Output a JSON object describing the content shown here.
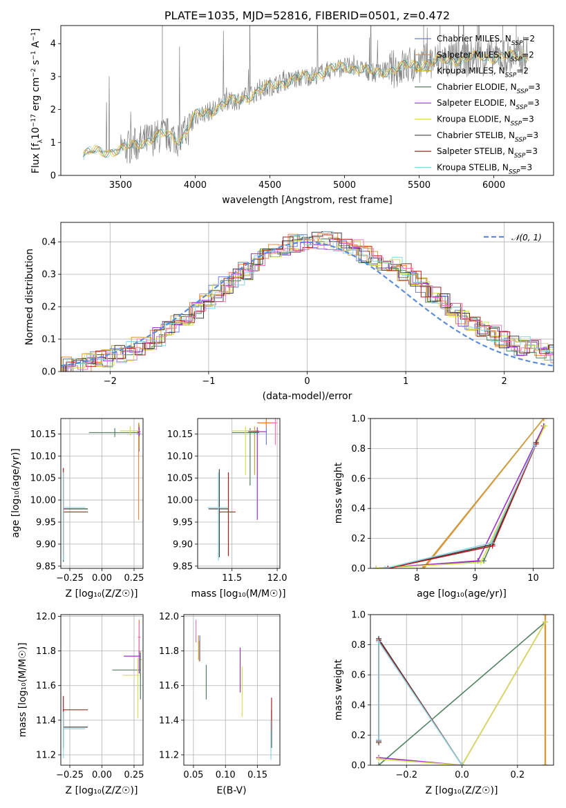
{
  "colors": {
    "Chabrier MILES": "#6a7fd6",
    "Salpeter MILES": "#f0853c",
    "Kroupa MILES": "#c8a33a",
    "Chabrier ELODIE": "#4f7f5f",
    "Salpeter ELODIE": "#9b30c8",
    "Kroupa ELODIE": "#d6df50",
    "Chabrier STELIB": "#404040",
    "Salpeter STELIB": "#b01c1c",
    "Kroupa STELIB": "#8fd3e0",
    "pink": "#ee77b4",
    "data": "#808080",
    "gauss": "#5b8bd9"
  },
  "chart_data": [
    {
      "id": "spectrum",
      "type": "line",
      "title": "PLATE=1035, MJD=52816, FIBERID=0501, z=0.472",
      "xlabel": "wavelength [Angstrom, rest frame]",
      "ylabel": "Flux [f_λ10^-17 erg cm^-2 s^-1 A^-1]",
      "xlim": [
        3100,
        6400
      ],
      "ylim": [
        0,
        4.55
      ],
      "xticks": [
        3500,
        4000,
        4500,
        5000,
        5500,
        6000
      ],
      "yticks": [
        0,
        1,
        2,
        3,
        4
      ],
      "legend_position": "top-right",
      "legend": [
        {
          "name": "Chabrier MILES",
          "sub": "SSP",
          "n": "2"
        },
        {
          "name": "Salpeter MILES",
          "sub": "SSP",
          "n": "2"
        },
        {
          "name": "Kroupa MILES",
          "sub": "SSP",
          "n": "2"
        },
        {
          "name": "Chabrier ELODIE",
          "sub": "SSP",
          "n": "3"
        },
        {
          "name": "Salpeter ELODIE",
          "sub": "SSP",
          "n": "3"
        },
        {
          "name": "Kroupa ELODIE",
          "sub": "SSP",
          "n": "3"
        },
        {
          "name": "Chabrier STELIB",
          "sub": "SSP",
          "n": "3"
        },
        {
          "name": "Salpeter STELIB",
          "sub": "SSP",
          "n": "3"
        },
        {
          "name": "Kroupa STELIB",
          "sub": "SSP",
          "n": "3"
        }
      ],
      "model_trend": [
        [
          3250,
          0.6
        ],
        [
          3300,
          0.72
        ],
        [
          3400,
          0.72
        ],
        [
          3500,
          0.78
        ],
        [
          3550,
          0.85
        ],
        [
          3700,
          1.1
        ],
        [
          3800,
          1.25
        ],
        [
          3900,
          1.1
        ],
        [
          3950,
          1.4
        ],
        [
          4000,
          1.8
        ],
        [
          4100,
          1.95
        ],
        [
          4200,
          2.2
        ],
        [
          4300,
          2.3
        ],
        [
          4400,
          2.5
        ],
        [
          4500,
          2.7
        ],
        [
          4600,
          2.85
        ],
        [
          4700,
          2.95
        ],
        [
          4800,
          3.05
        ],
        [
          4900,
          3.2
        ],
        [
          5000,
          3.3
        ],
        [
          5100,
          3.25
        ],
        [
          5200,
          3.1
        ],
        [
          5300,
          3.2
        ],
        [
          5400,
          3.3
        ],
        [
          5500,
          3.4
        ],
        [
          5600,
          3.45
        ],
        [
          5700,
          3.5
        ],
        [
          5800,
          3.55
        ],
        [
          5900,
          3.6
        ],
        [
          6000,
          3.6
        ],
        [
          6100,
          3.6
        ],
        [
          6200,
          3.65
        ]
      ]
    },
    {
      "id": "residuals",
      "type": "line",
      "xlabel": "(data-model)/error",
      "ylabel": "Normed distribution",
      "xlim": [
        -2.5,
        2.5
      ],
      "ylim": [
        0,
        0.46
      ],
      "xticks": [
        -2,
        -1,
        0,
        1,
        2
      ],
      "yticks": [
        0.0,
        0.1,
        0.2,
        0.3,
        0.4
      ],
      "legend_position": "top-right",
      "legend": [
        "𝒩(0, 1)"
      ],
      "bin_width": 0.1
    },
    {
      "id": "age-vs-Z",
      "type": "scatter",
      "xlabel": "Z [log₁₀(Z/Z☉)]",
      "ylabel": "age  [log₁₀(age/yr)]",
      "xlim": [
        -0.32,
        0.32
      ],
      "ylim": [
        9.845,
        10.185
      ],
      "xticks": [
        -0.25,
        0.0,
        0.25
      ],
      "yticks": [
        9.85,
        9.9,
        9.95,
        10.0,
        10.05,
        10.1,
        10.15
      ],
      "points": [
        {
          "model": "Chabrier MILES",
          "x": 0.29,
          "y": 10.15,
          "xerr": [
            0.02,
            0.01
          ],
          "yerr": [
            0.04,
            0.02
          ]
        },
        {
          "model": "Salpeter MILES",
          "x": 0.285,
          "y": 10.155,
          "xerr": [
            0.01,
            0.01
          ],
          "yerr": [
            0.2,
            0.02
          ]
        },
        {
          "model": "Kroupa MILES",
          "x": 0.288,
          "y": 10.155,
          "xerr": [
            0.01,
            0.01
          ],
          "yerr": [
            0.04,
            0.02
          ]
        },
        {
          "model": "Chabrier ELODIE",
          "x": 0.1,
          "y": 10.153,
          "xerr": [
            0.2,
            0.19
          ],
          "yerr": [
            0.01,
            0.01
          ]
        },
        {
          "model": "Salpeter ELODIE",
          "x": 0.29,
          "y": 10.155,
          "xerr": [
            0.01,
            0.01
          ],
          "yerr": [
            0.01,
            0.01
          ]
        },
        {
          "model": "Kroupa ELODIE",
          "x": 0.22,
          "y": 10.157,
          "xerr": [
            0.08,
            0.07
          ],
          "yerr": [
            0.01,
            0.01
          ]
        },
        {
          "model": "Chabrier STELIB",
          "x": -0.3,
          "y": 9.98,
          "xerr": [
            0.0,
            0.19
          ],
          "yerr": [
            0.12,
            0.07
          ]
        },
        {
          "model": "Salpeter STELIB",
          "x": -0.3,
          "y": 9.973,
          "xerr": [
            0.0,
            0.19
          ],
          "yerr": [
            0.1,
            0.1
          ]
        },
        {
          "model": "Kroupa STELIB",
          "x": -0.3,
          "y": 9.983,
          "xerr": [
            0.0,
            0.17
          ],
          "yerr": [
            0.12,
            0.08
          ]
        }
      ]
    },
    {
      "id": "age-vs-mass",
      "type": "scatter",
      "xlabel": "mass [log₁₀(M/M☉)]",
      "xlim": [
        11.12,
        12.03
      ],
      "ylim": [
        9.845,
        10.185
      ],
      "xticks": [
        11.5,
        12.0
      ],
      "yticks": [
        9.85,
        9.9,
        9.95,
        10.0,
        10.05,
        10.1,
        10.15
      ],
      "points": [
        {
          "model": "Chabrier MILES",
          "x": 11.88,
          "y": 10.175,
          "xerr": [
            0.1,
            0.1
          ],
          "yerr": [
            0.05,
            0.01
          ]
        },
        {
          "model": "Salpeter MILES",
          "x": 11.88,
          "y": 10.175,
          "xerr": [
            0.1,
            0.1
          ],
          "yerr": [
            0.01,
            0.01
          ]
        },
        {
          "model": "Kroupa MILES",
          "x": 11.75,
          "y": 10.157,
          "xerr": [
            0.1,
            0.05
          ],
          "yerr": [
            0.1,
            0.01
          ]
        },
        {
          "model": "Chabrier ELODIE",
          "x": 11.7,
          "y": 10.153,
          "xerr": [
            0.2,
            0.1
          ],
          "yerr": [
            0.12,
            0.01
          ]
        },
        {
          "model": "Salpeter ELODIE",
          "x": 11.78,
          "y": 10.155,
          "xerr": [
            0.1,
            0.1
          ],
          "yerr": [
            0.2,
            0.01
          ]
        },
        {
          "model": "Kroupa ELODIE",
          "x": 11.65,
          "y": 10.157,
          "xerr": [
            0.15,
            0.1
          ],
          "yerr": [
            0.1,
            0.01
          ]
        },
        {
          "model": "Chabrier STELIB",
          "x": 11.36,
          "y": 9.98,
          "xerr": [
            0.12,
            0.1
          ],
          "yerr": [
            0.11,
            0.09
          ]
        },
        {
          "model": "Salpeter STELIB",
          "x": 11.46,
          "y": 9.973,
          "xerr": [
            0.1,
            0.08
          ],
          "yerr": [
            0.1,
            0.09
          ]
        },
        {
          "model": "Kroupa STELIB",
          "x": 11.35,
          "y": 9.983,
          "xerr": [
            0.12,
            0.1
          ],
          "yerr": [
            0.12,
            0.08
          ]
        },
        {
          "model": "pink",
          "x": 11.98,
          "y": 10.175,
          "xerr": [
            0.05,
            0.02
          ],
          "yerr": [
            0.05,
            0.01
          ]
        }
      ]
    },
    {
      "id": "mass-weight-vs-age",
      "type": "line",
      "xlabel": "age  [log₁₀(age/yr)]",
      "ylabel": "mass weight",
      "xlim": [
        7.2,
        10.35
      ],
      "ylim": [
        0,
        1.0
      ],
      "xticks": [
        8,
        9,
        10
      ],
      "yticks": [
        0.0,
        0.2,
        0.4,
        0.6,
        0.8,
        1.0
      ],
      "series": [
        {
          "model": "Chabrier MILES",
          "x": [
            8.1,
            10.18
          ],
          "y": [
            0.0,
            1.0
          ]
        },
        {
          "model": "Salpeter MILES",
          "x": [
            8.12,
            10.18
          ],
          "y": [
            0.0,
            1.0
          ]
        },
        {
          "model": "Kroupa MILES",
          "x": [
            8.1,
            10.18
          ],
          "y": [
            0.0,
            1.0
          ]
        },
        {
          "model": "Chabrier ELODIE",
          "x": [
            7.3,
            9.15,
            10.18
          ],
          "y": [
            0.0,
            0.05,
            0.95
          ]
        },
        {
          "model": "Salpeter ELODIE",
          "x": [
            7.3,
            9.05,
            10.18
          ],
          "y": [
            0.0,
            0.05,
            0.95
          ]
        },
        {
          "model": "Kroupa ELODIE",
          "x": [
            7.3,
            9.1,
            10.2
          ],
          "y": [
            0.0,
            0.04,
            0.95
          ]
        },
        {
          "model": "Chabrier STELIB",
          "x": [
            7.5,
            9.3,
            10.05
          ],
          "y": [
            0.0,
            0.16,
            0.84
          ]
        },
        {
          "model": "Salpeter STELIB",
          "x": [
            7.5,
            9.3,
            10.05
          ],
          "y": [
            0.0,
            0.15,
            0.83
          ]
        },
        {
          "model": "Kroupa STELIB",
          "x": [
            7.45,
            9.28,
            10.03
          ],
          "y": [
            0.0,
            0.17,
            0.82
          ]
        }
      ]
    },
    {
      "id": "mass-vs-Z",
      "type": "scatter",
      "xlabel": "Z [log₁₀(Z/Z☉)]",
      "ylabel": "mass [log₁₀(M/M☉)]",
      "xlim": [
        -0.32,
        0.32
      ],
      "ylim": [
        11.14,
        12.01
      ],
      "xticks": [
        -0.25,
        0.0,
        0.25
      ],
      "yticks": [
        11.2,
        11.4,
        11.6,
        11.8,
        12.0
      ],
      "points": [
        {
          "model": "Chabrier MILES",
          "x": 0.29,
          "y": 11.88,
          "xerr": [
            0.01,
            0.01
          ],
          "yerr": [
            0.1,
            0.1
          ]
        },
        {
          "model": "Salpeter MILES",
          "x": 0.29,
          "y": 11.88,
          "xerr": [
            0.01,
            0.01
          ],
          "yerr": [
            0.1,
            0.1
          ]
        },
        {
          "model": "Kroupa MILES",
          "x": 0.3,
          "y": 11.75,
          "xerr": [
            0.01,
            0.01
          ],
          "yerr": [
            0.1,
            0.05
          ]
        },
        {
          "model": "Chabrier ELODIE",
          "x": 0.3,
          "y": 11.69,
          "xerr": [
            0.22,
            0.0
          ],
          "yerr": [
            0.17,
            0.1
          ]
        },
        {
          "model": "Salpeter ELODIE",
          "x": 0.29,
          "y": 11.77,
          "xerr": [
            0.12,
            0.01
          ],
          "yerr": [
            0.1,
            0.1
          ]
        },
        {
          "model": "Kroupa ELODIE",
          "x": 0.28,
          "y": 11.66,
          "xerr": [
            0.12,
            0.01
          ],
          "yerr": [
            0.25,
            0.1
          ]
        },
        {
          "model": "Chabrier STELIB",
          "x": -0.3,
          "y": 11.36,
          "xerr": [
            0.0,
            0.19
          ],
          "yerr": [
            0.12,
            0.1
          ]
        },
        {
          "model": "Salpeter STELIB",
          "x": -0.3,
          "y": 11.46,
          "xerr": [
            0.0,
            0.19
          ],
          "yerr": [
            0.1,
            0.08
          ]
        },
        {
          "model": "Kroupa STELIB",
          "x": -0.3,
          "y": 11.35,
          "xerr": [
            0.0,
            0.17
          ],
          "yerr": [
            0.17,
            0.1
          ]
        },
        {
          "model": "pink",
          "x": 0.29,
          "y": 11.88,
          "xerr": [
            0.01,
            0.01
          ],
          "yerr": [
            0.08,
            0.08
          ]
        }
      ]
    },
    {
      "id": "mass-vs-ebv",
      "type": "scatter",
      "xlabel": "E(B-V)",
      "xlim": [
        0.035,
        0.185
      ],
      "ylim": [
        11.14,
        12.01
      ],
      "xticks": [
        0.05,
        0.1,
        0.15
      ],
      "yticks": [
        11.2,
        11.4,
        11.6,
        11.8,
        12.0
      ],
      "points": [
        {
          "model": "Chabrier MILES",
          "x": 0.06,
          "y": 11.81,
          "xerr": [
            0,
            0
          ],
          "yerr": [
            0.07,
            0.08
          ]
        },
        {
          "model": "Salpeter MILES",
          "x": 0.059,
          "y": 11.8,
          "xerr": [
            0,
            0
          ],
          "yerr": [
            0.06,
            0.06
          ]
        },
        {
          "model": "Kroupa MILES",
          "x": 0.058,
          "y": 11.83,
          "xerr": [
            0,
            0
          ],
          "yerr": [
            0.08,
            0.06
          ]
        },
        {
          "model": "Chabrier ELODIE",
          "x": 0.07,
          "y": 11.62,
          "xerr": [
            0,
            0
          ],
          "yerr": [
            0.1,
            0.1
          ]
        },
        {
          "model": "Salpeter ELODIE",
          "x": 0.123,
          "y": 11.69,
          "xerr": [
            0,
            0
          ],
          "yerr": [
            0.13,
            0.13
          ]
        },
        {
          "model": "Kroupa ELODIE",
          "x": 0.126,
          "y": 11.56,
          "xerr": [
            0,
            0
          ],
          "yerr": [
            0.14,
            0.15
          ]
        },
        {
          "model": "Chabrier STELIB",
          "x": 0.172,
          "y": 11.36,
          "xerr": [
            0,
            0
          ],
          "yerr": [
            0.12,
            0.1
          ]
        },
        {
          "model": "Salpeter STELIB",
          "x": 0.172,
          "y": 11.44,
          "xerr": [
            0,
            0
          ],
          "yerr": [
            0.1,
            0.09
          ]
        },
        {
          "model": "Kroupa STELIB",
          "x": 0.171,
          "y": 11.3,
          "xerr": [
            0,
            0
          ],
          "yerr": [
            0.13,
            0.1
          ]
        },
        {
          "model": "pink",
          "x": 0.054,
          "y": 11.92,
          "xerr": [
            0,
            0
          ],
          "yerr": [
            0.07,
            0.06
          ]
        }
      ]
    },
    {
      "id": "mass-weight-vs-Z",
      "type": "line",
      "xlabel": "Z [log₁₀(Z/Z☉)]",
      "ylabel": "mass weight",
      "xlim": [
        -0.33,
        0.33
      ],
      "ylim": [
        0,
        1.0
      ],
      "xticks": [
        -0.2,
        0.0,
        0.2
      ],
      "yticks": [
        0.0,
        0.2,
        0.4,
        0.6,
        0.8,
        1.0
      ],
      "series": [
        {
          "model": "Chabrier MILES",
          "x": [
            0.3,
            0.3
          ],
          "y": [
            0.0,
            1.0
          ]
        },
        {
          "model": "Salpeter MILES",
          "x": [
            0.301,
            0.301
          ],
          "y": [
            0.0,
            1.0
          ]
        },
        {
          "model": "Kroupa MILES",
          "x": [
            0.299,
            0.299
          ],
          "y": [
            0.0,
            1.0
          ]
        },
        {
          "model": "Chabrier ELODIE",
          "x": [
            -0.3,
            0.3
          ],
          "y": [
            0.0,
            0.95
          ]
        },
        {
          "model": "Salpeter ELODIE",
          "x": [
            -0.3,
            0.0,
            0.3
          ],
          "y": [
            0.05,
            0.0,
            0.95
          ]
        },
        {
          "model": "Kroupa ELODIE",
          "x": [
            -0.3,
            0.0,
            0.3
          ],
          "y": [
            0.04,
            0.0,
            0.95
          ]
        },
        {
          "model": "Chabrier STELIB",
          "x": [
            -0.3,
            -0.3,
            0.0
          ],
          "y": [
            0.16,
            0.84,
            0.0
          ]
        },
        {
          "model": "Salpeter STELIB",
          "x": [
            -0.3,
            -0.3,
            0.0
          ],
          "y": [
            0.15,
            0.83,
            0.0
          ]
        },
        {
          "model": "Kroupa STELIB",
          "x": [
            -0.3,
            -0.3,
            0.0
          ],
          "y": [
            0.17,
            0.82,
            0.0
          ]
        }
      ]
    }
  ]
}
